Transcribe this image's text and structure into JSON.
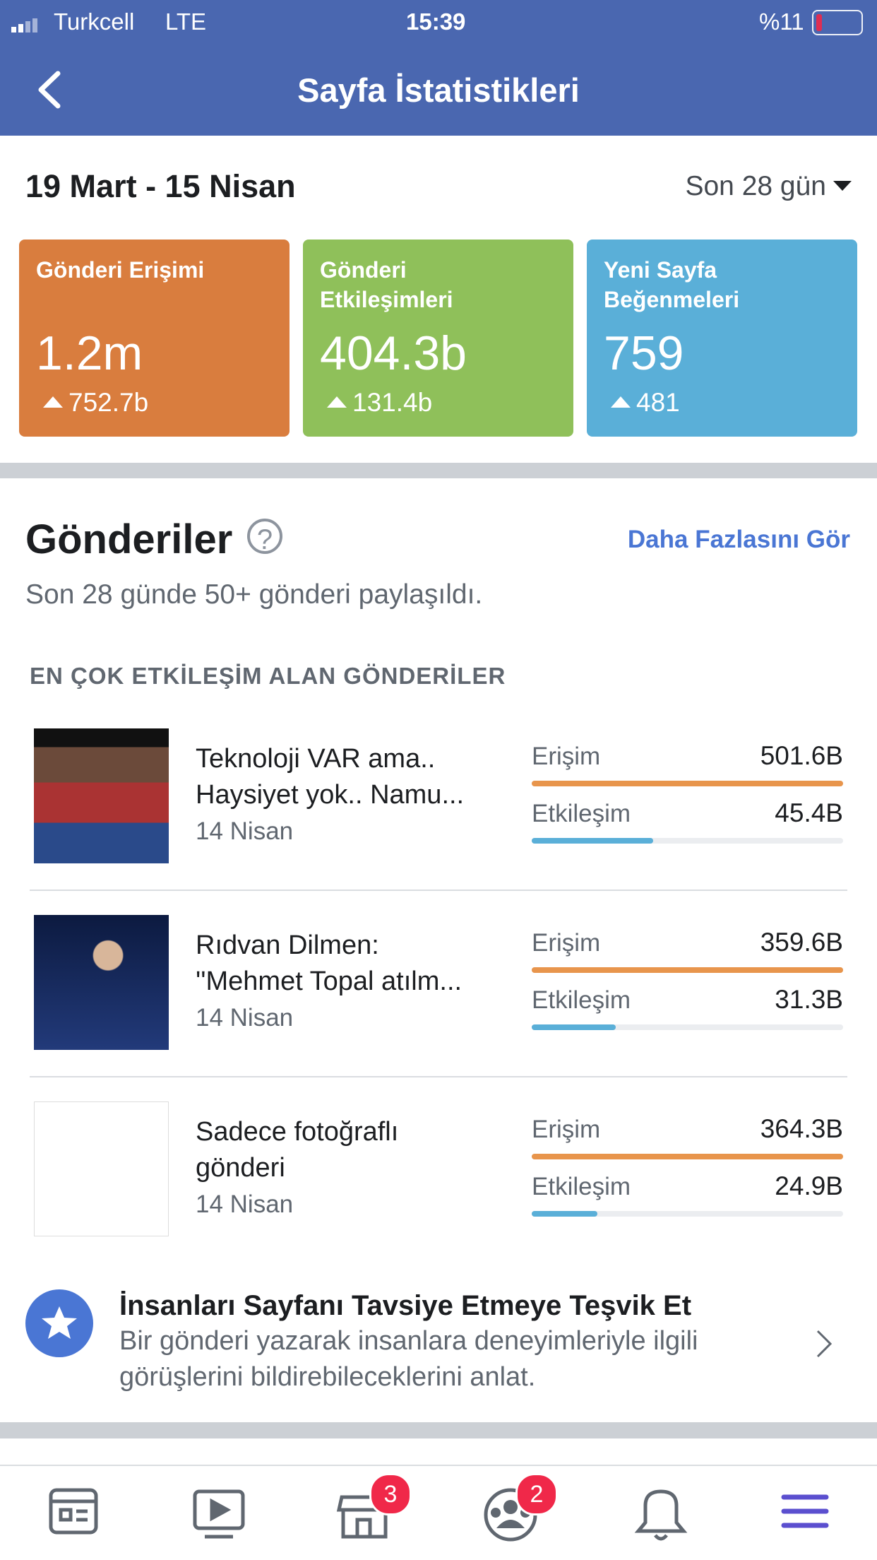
{
  "status": {
    "carrier": "Turkcell",
    "network": "LTE",
    "time": "15:39",
    "battery": "%11"
  },
  "header": {
    "title": "Sayfa İstatistikleri"
  },
  "date_range": "19 Mart - 15 Nisan",
  "period": "Son 28 gün",
  "cards": [
    {
      "label": "Gönderi Erişimi",
      "value": "1.2m",
      "change": "752.7b"
    },
    {
      "label": "Gönderi Etkileşimleri",
      "value": "404.3b",
      "change": "131.4b"
    },
    {
      "label": "Yeni Sayfa Beğenmeleri",
      "value": "759",
      "change": "481"
    }
  ],
  "posts_section": {
    "title": "Gönderiler",
    "see_more": "Daha Fazlasını Gör",
    "subtitle": "Son 28 günde 50+ gönderi paylaşıldı.",
    "list_heading": "EN ÇOK ETKİLEŞİM ALAN GÖNDERİLER",
    "posts": [
      {
        "title": [
          "Teknoloji VAR ama..",
          "Haysiyet yok.. Namu..."
        ],
        "date": "14 Nisan",
        "reach_label": "Erişim",
        "reach": "501.6B",
        "engagement_label": "Etkileşim",
        "engagement": "45.4B"
      },
      {
        "title": [
          "Rıdvan Dilmen:",
          "''Mehmet Topal atılm..."
        ],
        "date": "14 Nisan",
        "reach_label": "Erişim",
        "reach": "359.6B",
        "engagement_label": "Etkileşim",
        "engagement": "31.3B"
      },
      {
        "title": [
          "Sadece fotoğraflı",
          "gönderi"
        ],
        "date": "14 Nisan",
        "reach_label": "Erişim",
        "reach": "364.3B",
        "engagement_label": "Etkileşim",
        "engagement": "24.9B"
      }
    ]
  },
  "promo": {
    "title": "İnsanları Sayfanı Tavsiye Etmeye Teşvik Et",
    "text": [
      "Bir gönderi yazarak insanlara deneyimleriyle ilgili",
      "görüşlerini bildirebileceklerini anlat."
    ]
  },
  "tabs": {
    "badges": [
      "3",
      "2"
    ]
  }
}
